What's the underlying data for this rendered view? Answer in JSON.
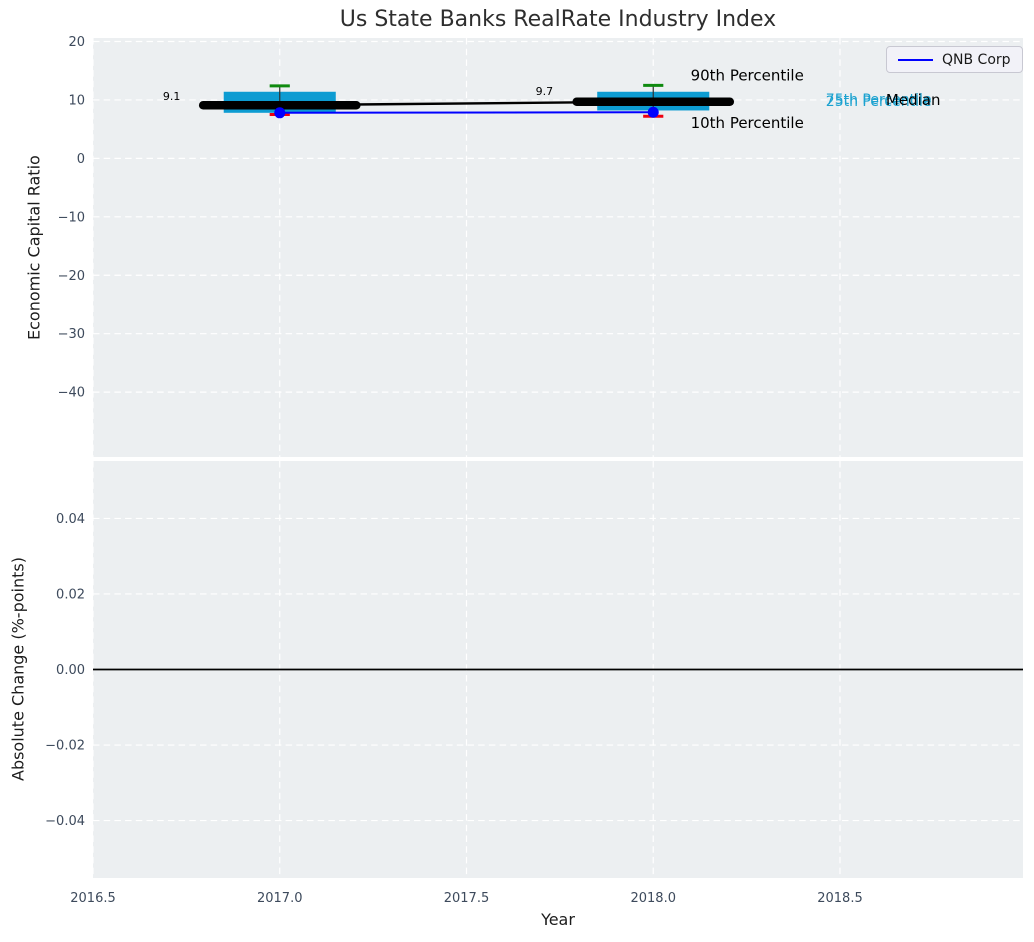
{
  "colors": {
    "figure_bg": "#ffffff",
    "plot_bg": "#eceff1",
    "grid": "#ffffff",
    "box_fill": "#0d9cd2",
    "whisker": "#2f2f2f",
    "cap_top": "#0f8a0f",
    "cap_bottom": "#ee0011",
    "median_line": "#000000",
    "series_line": "#0000ff",
    "zero_line": "#000000",
    "tick_text": "#3d4a5c",
    "label_text": "#1c1c1c",
    "annotation_cyan": "#1ba2d0"
  },
  "chart_data": [
    {
      "type": "boxplot-line-combo",
      "title": "Us State Banks RealRate Industry Index",
      "xlabel": "Year",
      "ylabel": "Economic Capital Ratio",
      "xlim": [
        2016.5,
        2018.99
      ],
      "ylim": [
        -51.1,
        20.6
      ],
      "x_ticks": [
        2016.5,
        2017.0,
        2017.5,
        2018.0,
        2018.5
      ],
      "x_tick_labels": [
        "2016.5",
        "2017.0",
        "2017.5",
        "2018.0",
        "2018.5"
      ],
      "y_ticks": [
        20,
        10,
        0,
        -10,
        -20,
        -30,
        -40
      ],
      "y_tick_labels": [
        "20",
        "10",
        "0",
        "−10",
        "−20",
        "−30",
        "−40"
      ],
      "grid": "dashed-white",
      "legend": {
        "label": "QNB Corp",
        "position": "upper right",
        "color": "#0000ff"
      },
      "years": [
        2017,
        2018
      ],
      "percentile_90": [
        12.4,
        12.5
      ],
      "percentile_75": [
        11.4,
        11.4
      ],
      "median": [
        9.1,
        9.7
      ],
      "percentile_25": [
        7.8,
        8.2
      ],
      "percentile_10": [
        7.5,
        7.2
      ],
      "series": [
        {
          "name": "QNB Corp",
          "x": [
            2017,
            2018
          ],
          "values": [
            7.8,
            7.9
          ],
          "color": "#0000ff"
        }
      ],
      "annotations": [
        {
          "text": "9.1",
          "x": 2016.687,
          "y": 11.45,
          "size": 11,
          "color": "#000000",
          "name": "median-value-label-2017"
        },
        {
          "text": "9.7",
          "x": 2017.685,
          "y": 12.3,
          "size": 11,
          "color": "#000000",
          "name": "median-value-label-2018"
        },
        {
          "text": "90th Percentile",
          "x": 2018.1,
          "y": 15.3,
          "size": 15,
          "color": "#000000",
          "name": "annotation-90th-percentile"
        },
        {
          "text": "10th Percentile",
          "x": 2018.1,
          "y": 7.2,
          "size": 15,
          "color": "#000000",
          "name": "annotation-10th-percentile"
        },
        {
          "text": "75th Percentile",
          "x": 2018.462,
          "y": 11.2,
          "size": 14,
          "color": "#1ba2d0",
          "name": "annotation-75th-percentile"
        },
        {
          "text": "25th Percentile",
          "x": 2018.462,
          "y": 10.85,
          "size": 14,
          "color": "#1ba2d0",
          "name": "annotation-25th-percentile"
        },
        {
          "text": "Median",
          "x": 2018.623,
          "y": 11.1,
          "size": 15,
          "color": "#000000",
          "name": "annotation-median"
        }
      ]
    },
    {
      "type": "line",
      "xlabel": "Year",
      "ylabel": "Absolute Change (%-points)",
      "xlim": [
        2016.5,
        2018.99
      ],
      "ylim": [
        -0.0552,
        0.0552
      ],
      "x_ticks": [
        2016.5,
        2017.0,
        2017.5,
        2018.0,
        2018.5
      ],
      "x_tick_labels": [
        "2016.5",
        "2017.0",
        "2017.5",
        "2018.0",
        "2018.5"
      ],
      "y_ticks": [
        0.04,
        0.02,
        0.0,
        -0.02,
        -0.04
      ],
      "y_tick_labels": [
        "0.04",
        "0.02",
        "0.00",
        "−0.02",
        "−0.04"
      ],
      "zero_line": 0.0,
      "grid": "dashed-white"
    }
  ]
}
